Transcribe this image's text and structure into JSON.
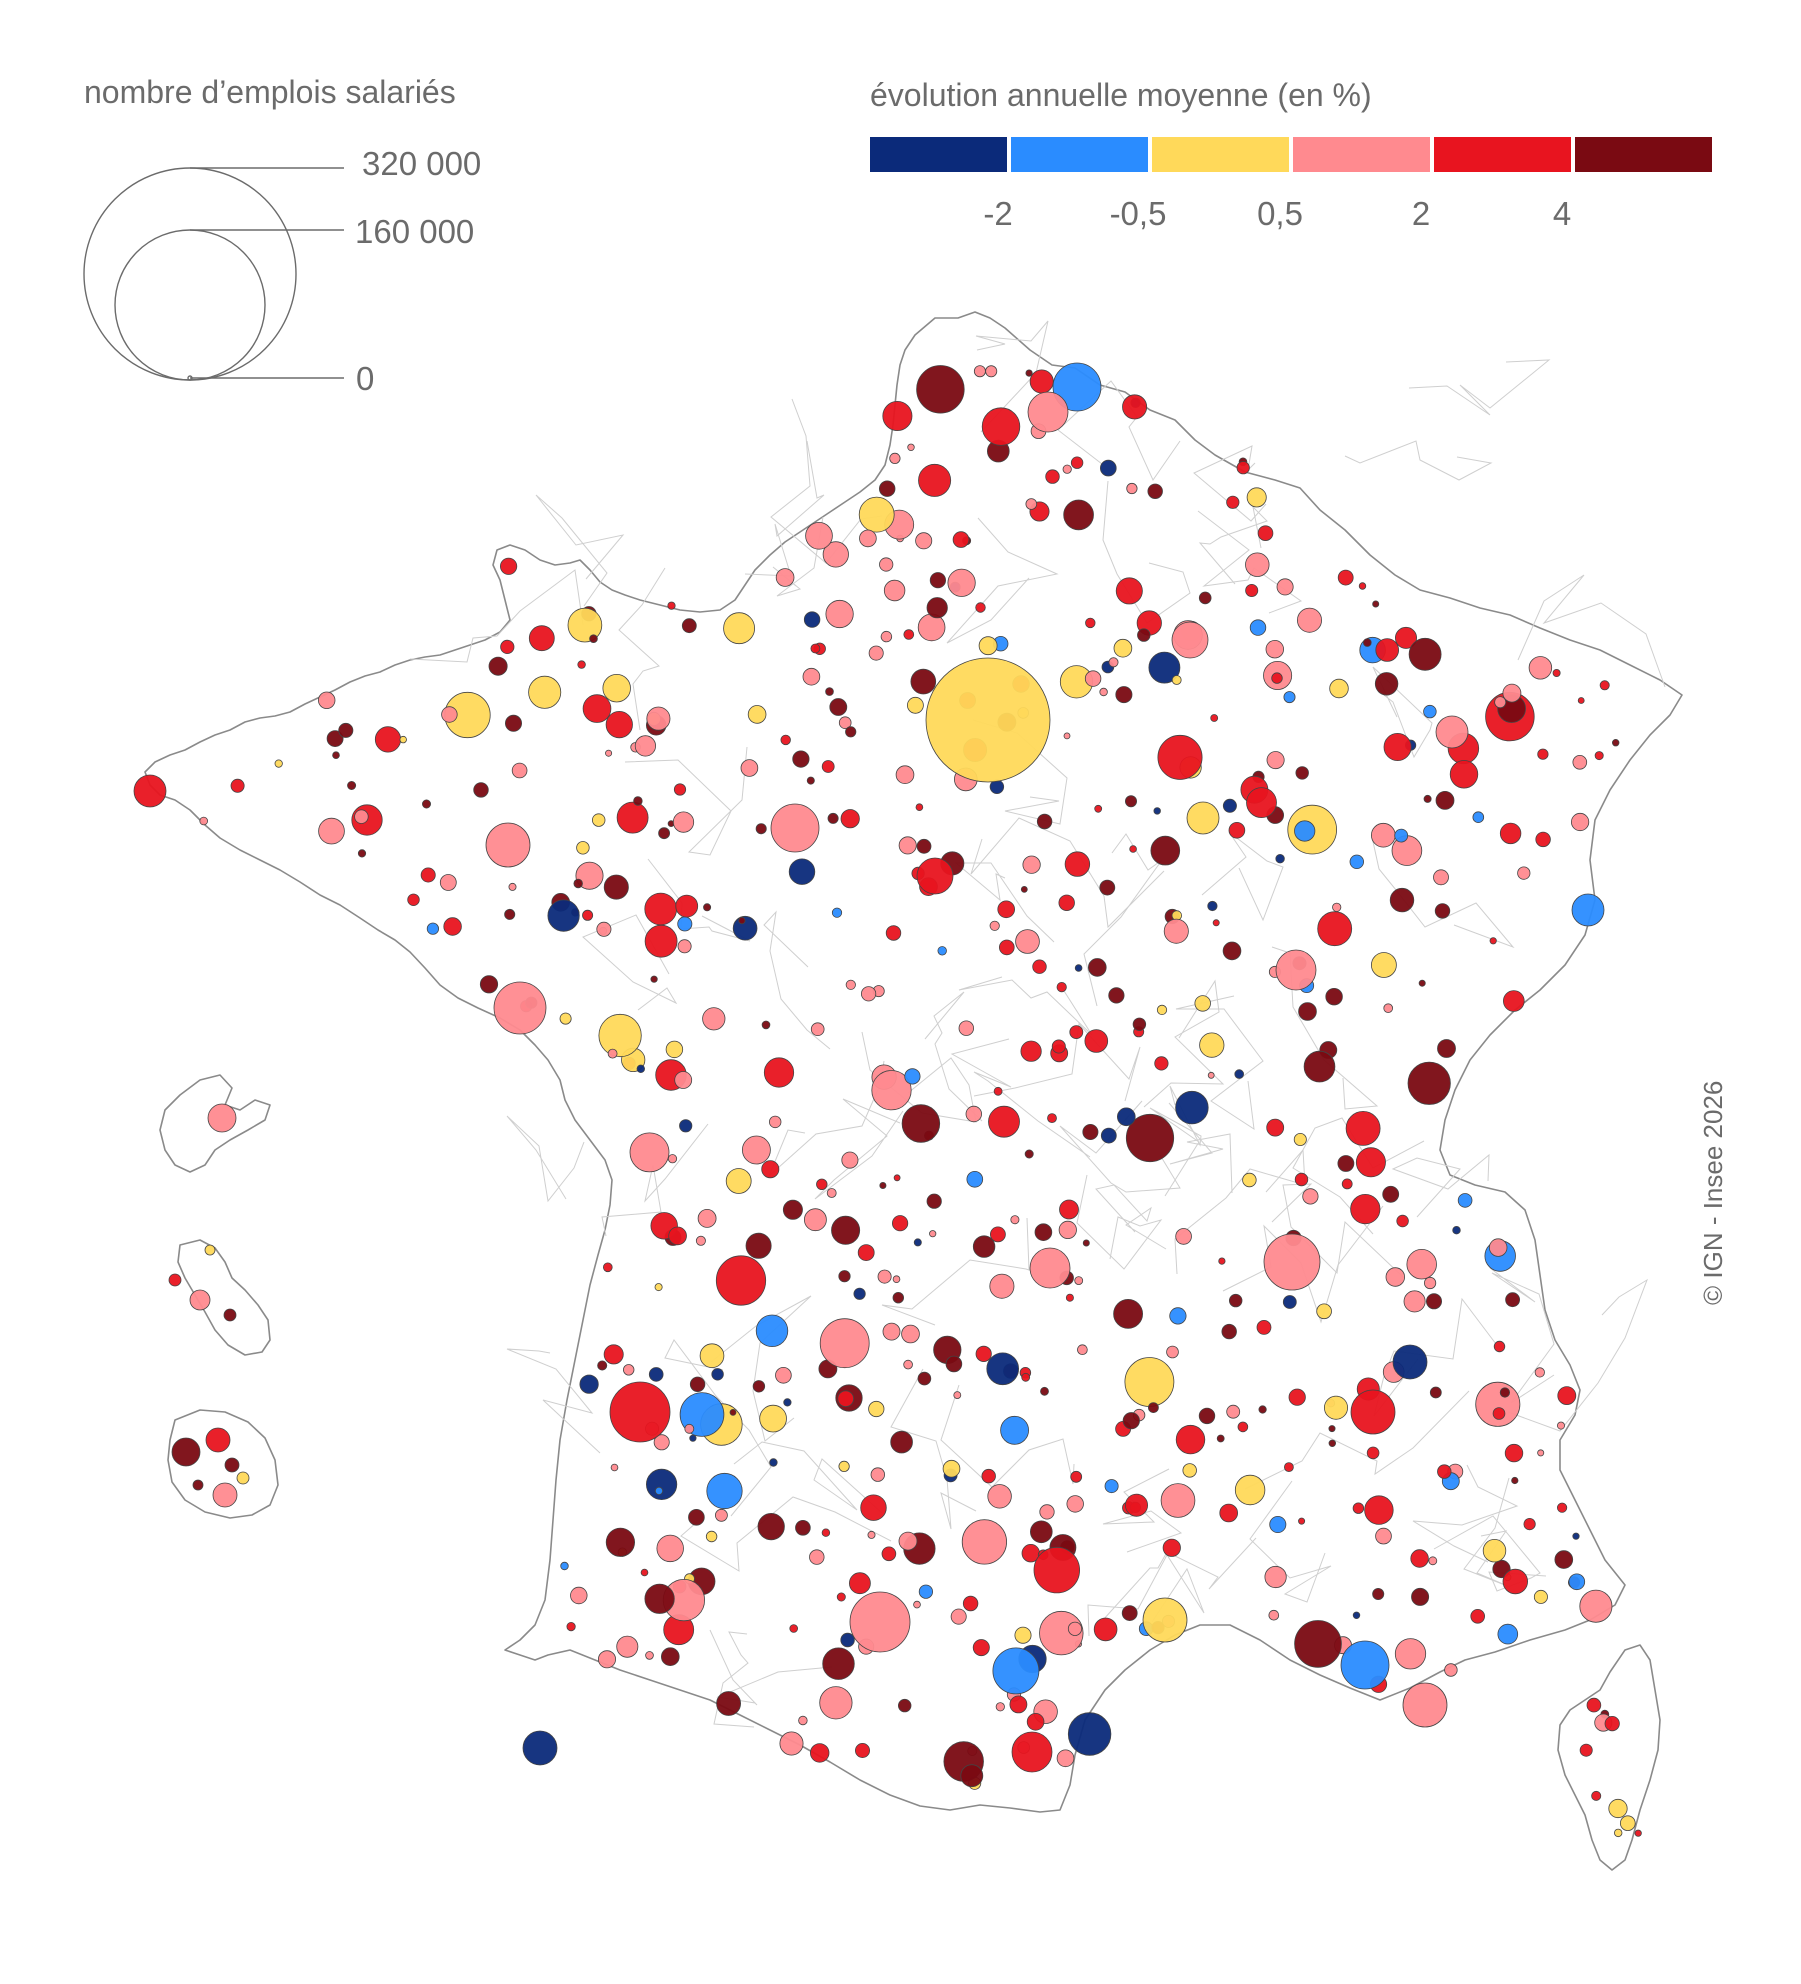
{
  "legend": {
    "size_title": "nombre d’emplois salariés",
    "size_values": [
      "320 000",
      "160 000",
      "0"
    ],
    "color_title": "évolution annuelle moyenne (en %)",
    "color_classes": [
      "#0b2a7a",
      "#2a8cff",
      "#ffd95a",
      "#ff8a8f",
      "#e8141f",
      "#7a0a12"
    ],
    "color_breaks": [
      "-2",
      "-0,5",
      "0,5",
      "2",
      "4"
    ]
  },
  "credit": "© IGN - Insee 2026",
  "map": {
    "regions": [
      "metropolitan-france",
      "guadeloupe",
      "martinique",
      "la-reunion",
      "corsica"
    ]
  }
}
